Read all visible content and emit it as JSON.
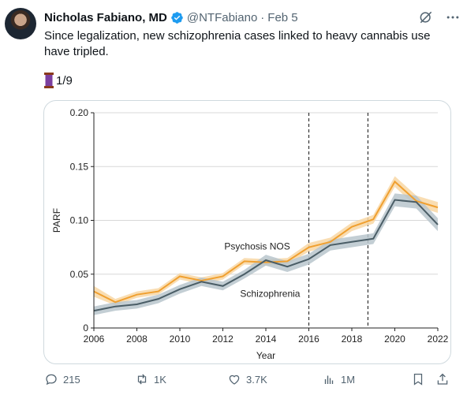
{
  "post": {
    "author_name": "Nicholas Fabiano, MD",
    "handle": "@NTFabiano",
    "separator": "·",
    "date": "Feb 5",
    "text": "Since legalization, new schizophrenia cases linked to heavy cannabis use have tripled.",
    "thread_count": "1/9"
  },
  "actions": {
    "replies": "215",
    "reposts": "1K",
    "likes": "3.7K",
    "views": "1M"
  },
  "icons": {
    "verified": "verified-badge-icon",
    "grok": "grok-icon",
    "more": "more-icon",
    "thread": "spool-of-thread-icon",
    "reply": "reply-icon",
    "repost": "repost-icon",
    "like": "heart-icon",
    "views": "analytics-icon",
    "bookmark": "bookmark-icon",
    "share": "share-icon"
  },
  "colors": {
    "verified": "#1d9bf0",
    "psychosis": "#f0a030",
    "psychosis_band": "#f8d7a4",
    "schizophrenia": "#4a5d66",
    "schizophrenia_band": "#b9c6cc"
  },
  "chart_data": {
    "type": "line",
    "xlabel": "Year",
    "ylabel": "PARF",
    "xlim": [
      2006,
      2022
    ],
    "ylim": [
      0,
      0.2
    ],
    "xticks": [
      "2006",
      "2008",
      "2010",
      "2012",
      "2014",
      "2016",
      "2018",
      "2020",
      "2022"
    ],
    "yticks": [
      "0",
      "0.05",
      "0.10",
      "0.15",
      "0.20"
    ],
    "vlines": [
      2016,
      2018.75
    ],
    "series": [
      {
        "name": "Psychosis NOS",
        "x": [
          2006,
          2007,
          2008,
          2009,
          2010,
          2011,
          2012,
          2013,
          2014,
          2015,
          2016,
          2017,
          2018,
          2019,
          2020,
          2021,
          2022
        ],
        "values": [
          0.034,
          0.024,
          0.031,
          0.034,
          0.048,
          0.044,
          0.048,
          0.062,
          0.061,
          0.062,
          0.075,
          0.08,
          0.094,
          0.101,
          0.136,
          0.118,
          0.112
        ],
        "band": [
          0.005,
          0.003,
          0.003,
          0.003,
          0.003,
          0.003,
          0.003,
          0.003,
          0.003,
          0.003,
          0.004,
          0.004,
          0.004,
          0.004,
          0.005,
          0.005,
          0.005
        ],
        "label_at": [
          2013.6,
          0.073
        ]
      },
      {
        "name": "Schizophrenia",
        "x": [
          2006,
          2007,
          2008,
          2009,
          2010,
          2011,
          2012,
          2013,
          2014,
          2015,
          2016,
          2017,
          2018,
          2019,
          2020,
          2021,
          2022
        ],
        "values": [
          0.016,
          0.02,
          0.022,
          0.027,
          0.036,
          0.043,
          0.039,
          0.05,
          0.063,
          0.057,
          0.064,
          0.077,
          0.08,
          0.083,
          0.119,
          0.117,
          0.096
        ],
        "band": [
          0.004,
          0.004,
          0.004,
          0.004,
          0.004,
          0.004,
          0.004,
          0.004,
          0.005,
          0.005,
          0.005,
          0.005,
          0.005,
          0.005,
          0.006,
          0.006,
          0.006
        ],
        "label_at": [
          2014.2,
          0.029
        ]
      }
    ]
  }
}
